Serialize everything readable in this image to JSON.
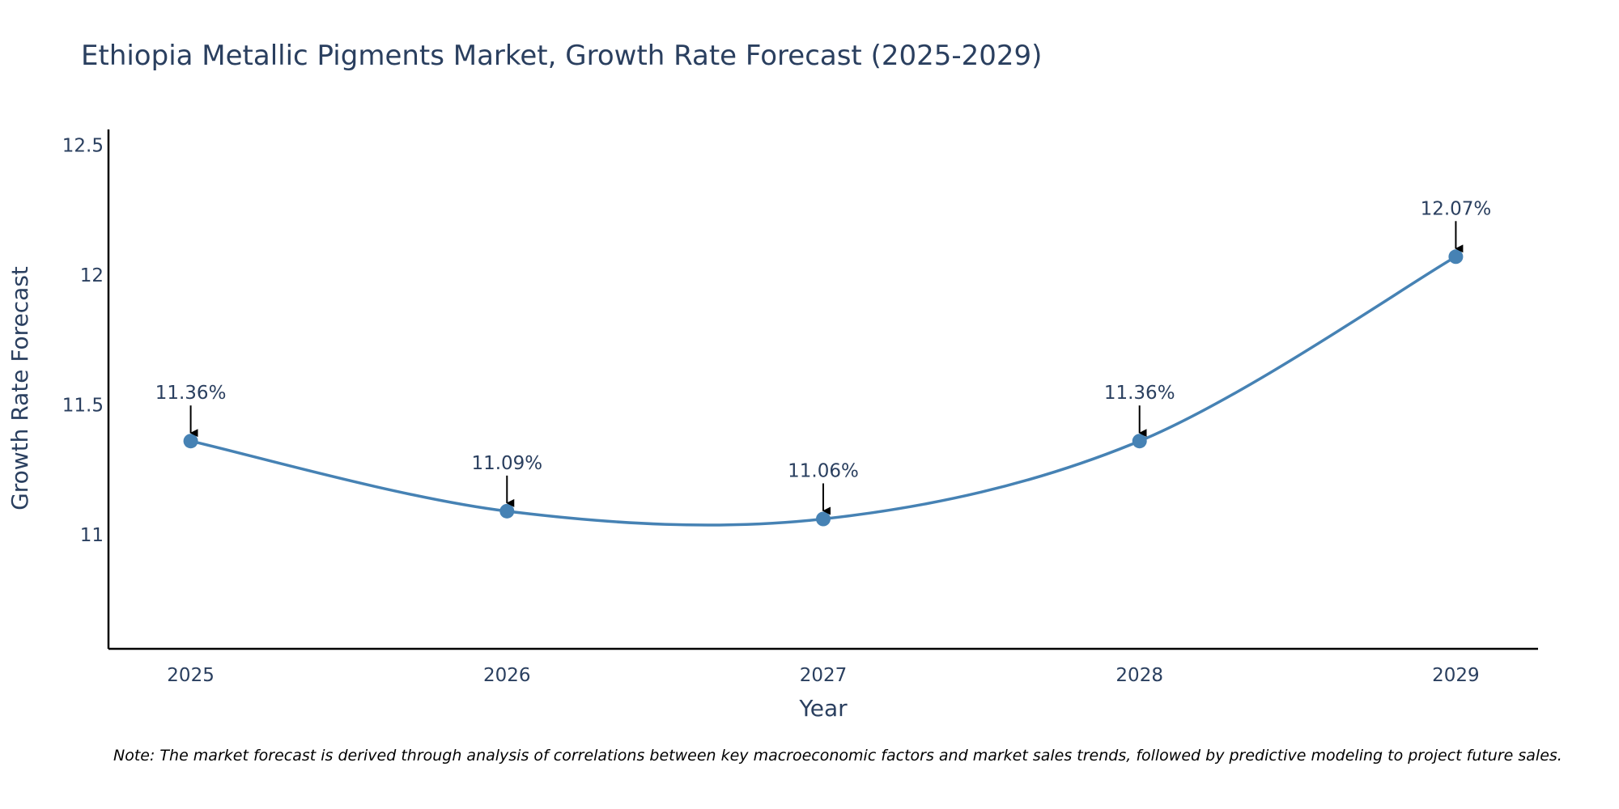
{
  "colors": {
    "line": "#4682b4",
    "marker": "#4682b4",
    "arrow": "#000000",
    "axis": "#000000",
    "text": "#2a3f5f"
  },
  "chart_data": {
    "type": "line",
    "title": "Ethiopia Metallic Pigments Market, Growth Rate Forecast (2025-2029)",
    "xlabel": "Year",
    "ylabel": "Growth Rate Forecast",
    "categories": [
      "2025",
      "2026",
      "2027",
      "2028",
      "2029"
    ],
    "x": [
      2025,
      2026,
      2027,
      2028,
      2029
    ],
    "values": [
      11.36,
      11.09,
      11.06,
      11.36,
      12.07
    ],
    "data_labels": [
      "11.36%",
      "11.09%",
      "11.06%",
      "11.36%",
      "12.07%"
    ],
    "xlim": [
      2024.74,
      2029.26
    ],
    "ylim": [
      10.56,
      12.56
    ],
    "yticks": [
      11,
      11.5,
      12,
      12.5
    ],
    "ytick_labels": [
      "11",
      "11.5",
      "12",
      "12.5"
    ],
    "grid": false,
    "line_shape": "spline",
    "note": "Note: The market forecast is derived through analysis of correlations between key macroeconomic factors and market sales trends, followed by predictive modeling to project future sales."
  }
}
